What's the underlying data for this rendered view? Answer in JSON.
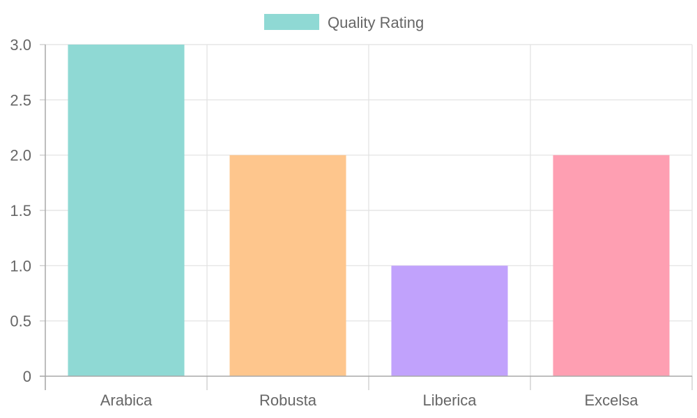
{
  "chart_data": {
    "type": "bar",
    "categories": [
      "Arabica",
      "Robusta",
      "Liberica",
      "Excelsa"
    ],
    "series": [
      {
        "name": "Quality Rating",
        "values": [
          3,
          2,
          1,
          2
        ],
        "colors": [
          "#8fd9d4",
          "#fec68d",
          "#c1a2fc",
          "#fe9fb2"
        ]
      }
    ],
    "legend_color": "#8fd9d4",
    "y_ticks": [
      "0",
      "0.5",
      "1.0",
      "1.5",
      "2.0",
      "2.5",
      "3.0"
    ],
    "ylim": [
      0,
      3
    ],
    "grid": true,
    "legend_position": "top"
  }
}
